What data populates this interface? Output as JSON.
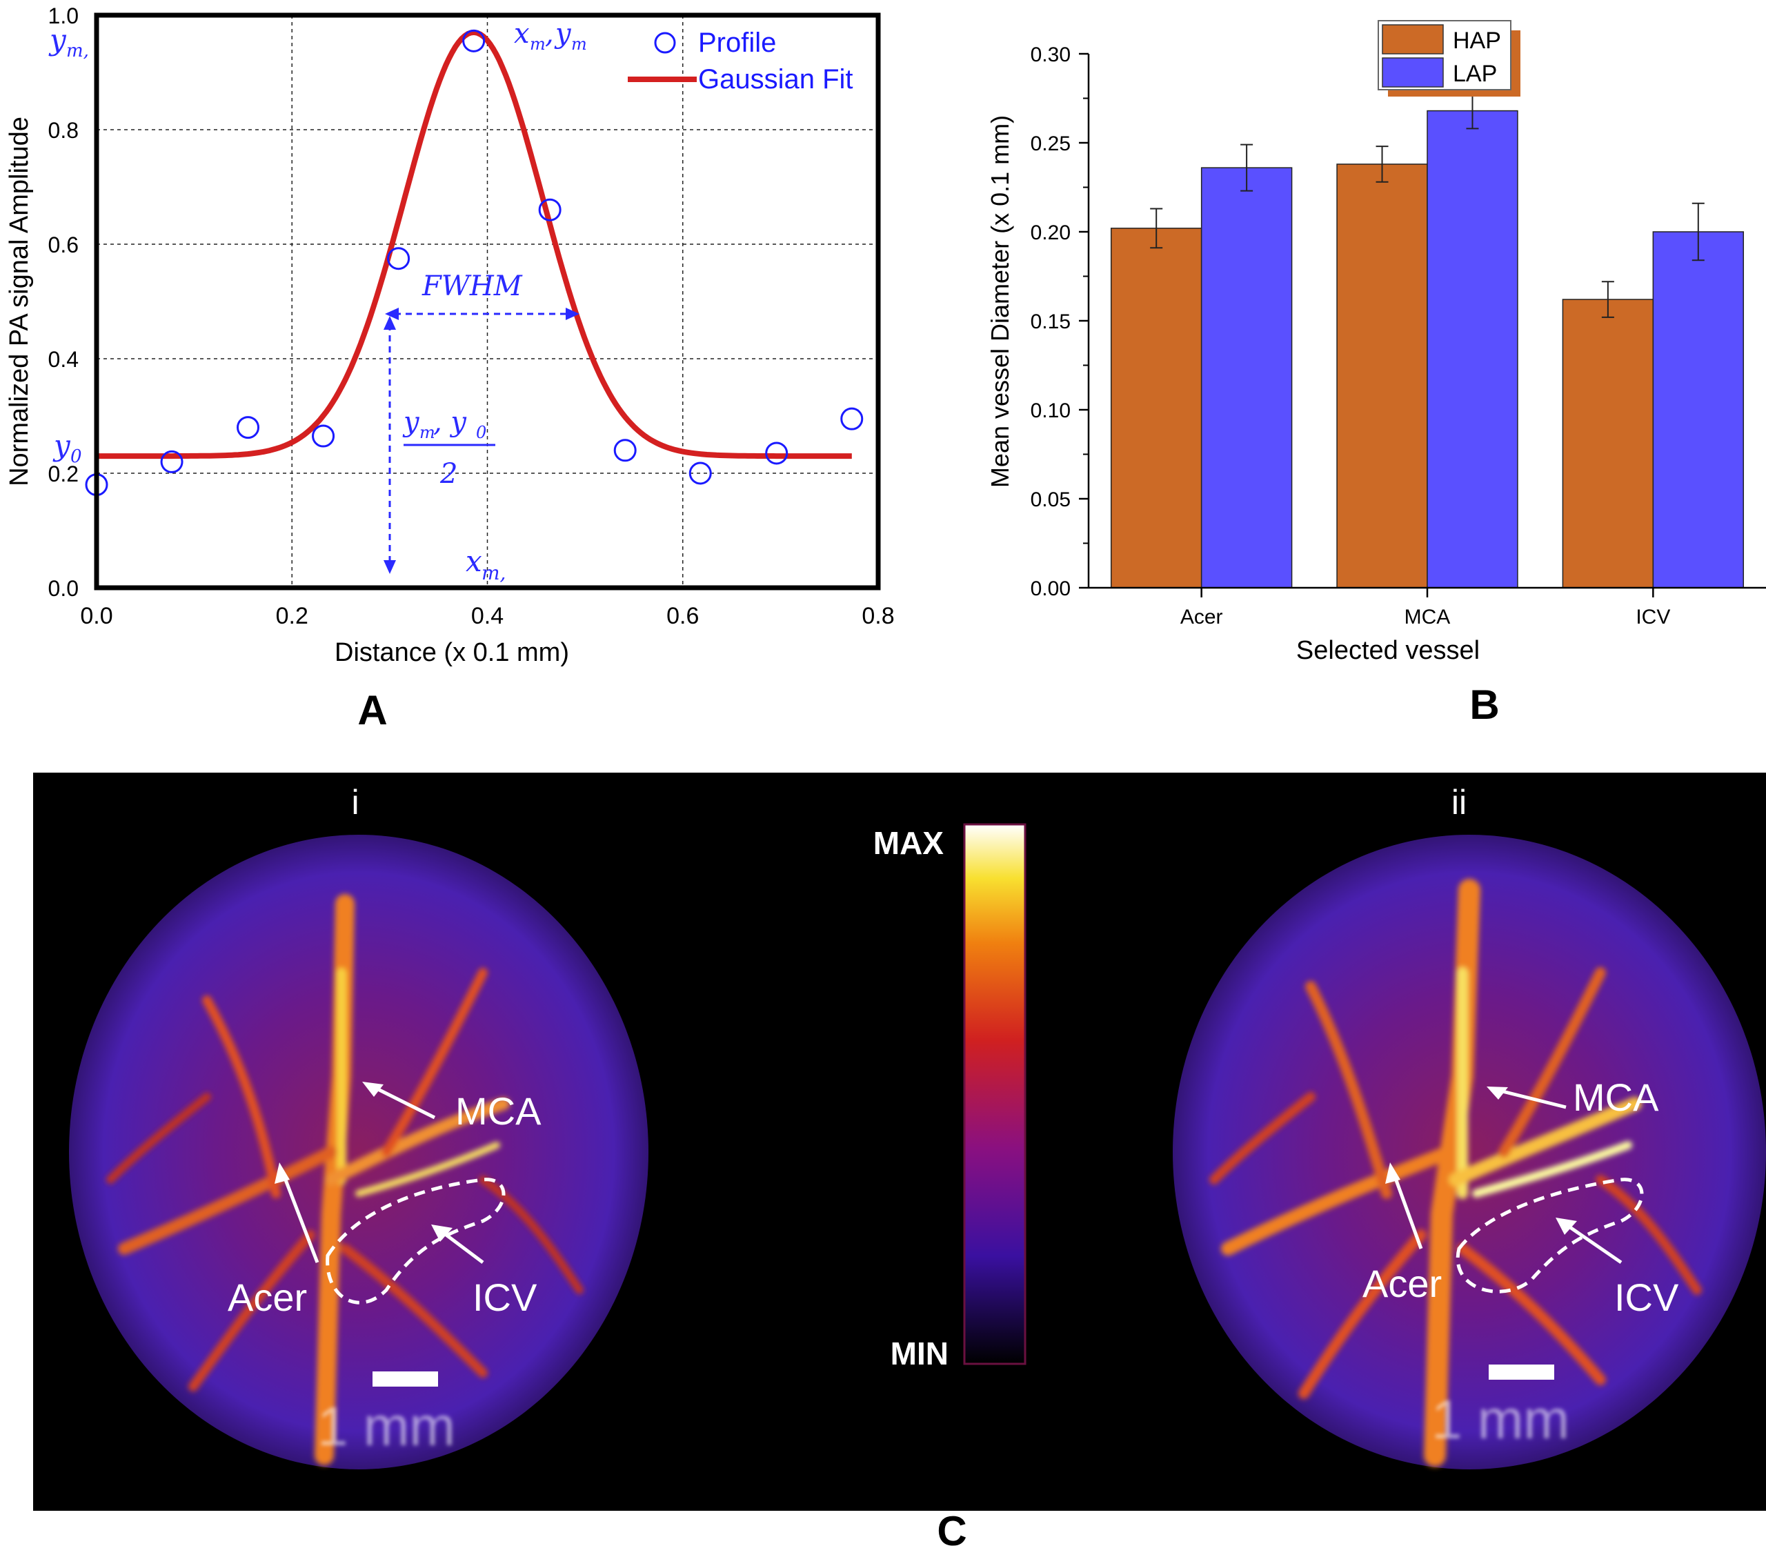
{
  "panel_a": {
    "letter": "A",
    "annotations": {
      "peak": "x",
      "peak_sub": "m",
      "peak_y": "y",
      "peak_y_sub": "m",
      "ym": "y",
      "ym_sub": "m,",
      "y0": "y",
      "y0_sub": "0",
      "xm": "x",
      "xm_sub": "m,",
      "fwhm": "FWHM",
      "half_num": "y",
      "half_num_sub1": "m",
      "half_num_sep": ", y",
      "half_num_sub2": "0",
      "half_den": "2"
    },
    "colors": {
      "profile": "#1a1aff",
      "fit": "#d42020",
      "annotation": "#2a2aff"
    }
  },
  "panel_b": {
    "letter": "B"
  },
  "panel_c": {
    "letter": "C",
    "label_i": "i",
    "label_ii": "ii",
    "colorbar_max": "MAX",
    "colorbar_min": "MIN",
    "scale_text": "1 mm",
    "label_mca": "MCA",
    "label_acer": "Acer",
    "label_icv": "ICV"
  },
  "chart_data": [
    {
      "type": "scatter",
      "xlabel": "Distance (x 0.1 mm)",
      "ylabel": "Normalized PA signal Amplitude",
      "xlim": [
        0.0,
        0.8
      ],
      "ylim": [
        0.0,
        1.0
      ],
      "xticks": [
        "0.0",
        "0.2",
        "0.4",
        "0.6",
        "0.8"
      ],
      "yticks": [
        "0.0",
        "0.2",
        "0.4",
        "0.6",
        "0.8",
        "1.0"
      ],
      "grid": true,
      "legend_position": "top-right",
      "series": [
        {
          "name": "Profile",
          "x": [
            0.0,
            0.077,
            0.155,
            0.232,
            0.309,
            0.386,
            0.464,
            0.541,
            0.618,
            0.696,
            0.773
          ],
          "y": [
            0.18,
            0.22,
            0.28,
            0.265,
            0.575,
            0.955,
            0.66,
            0.24,
            0.2,
            0.235,
            0.295
          ]
        },
        {
          "name": "Gaussian Fit",
          "gaussian": {
            "y0": 0.23,
            "amplitude": 0.74,
            "center": 0.386,
            "sigma": 0.071
          },
          "x_range": [
            0.0,
            0.773
          ]
        }
      ]
    },
    {
      "type": "bar",
      "xlabel": "Selected vessel",
      "ylabel": "Mean vessel Diameter (x 0.1 mm)",
      "categories": [
        "Acer",
        "MCA",
        "ICV"
      ],
      "ylim": [
        0.0,
        0.3
      ],
      "yticks": [
        "0.00",
        "0.05",
        "0.10",
        "0.15",
        "0.20",
        "0.25",
        "0.30"
      ],
      "legend_position": "top-center",
      "series": [
        {
          "name": "HAP",
          "color": "#cc6a26",
          "values": [
            0.202,
            0.238,
            0.162
          ],
          "errors": [
            0.011,
            0.01,
            0.01
          ]
        },
        {
          "name": "LAP",
          "color": "#5a50ff",
          "values": [
            0.236,
            0.268,
            0.2
          ],
          "errors": [
            0.013,
            0.01,
            0.016
          ]
        }
      ]
    }
  ]
}
